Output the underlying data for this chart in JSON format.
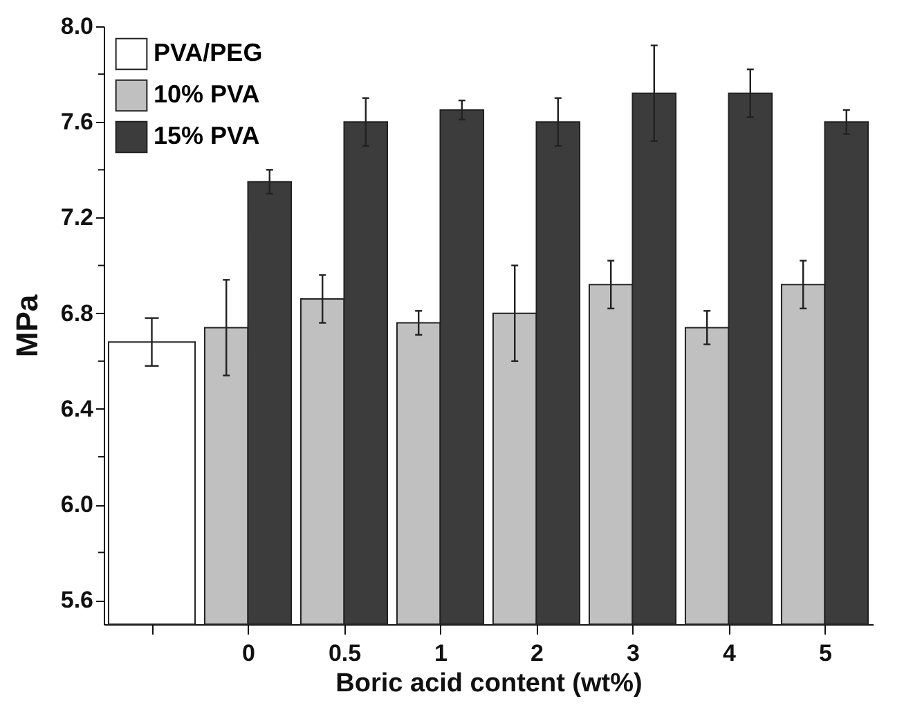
{
  "chart_data": {
    "type": "bar",
    "xlabel": "Boric acid content (wt%)",
    "ylabel": "MPa",
    "categories": [
      null,
      "0",
      "0.5",
      "1",
      "2",
      "3",
      "4",
      "5"
    ],
    "series": [
      {
        "name": "PVA/PEG",
        "color": "#ffffff",
        "values": [
          6.68,
          null,
          null,
          null,
          null,
          null,
          null,
          null
        ],
        "errors": [
          0.1,
          null,
          null,
          null,
          null,
          null,
          null,
          null
        ]
      },
      {
        "name": "10% PVA",
        "color": "#c0c0c0",
        "values": [
          null,
          6.74,
          6.86,
          6.76,
          6.8,
          6.92,
          6.74,
          6.92
        ],
        "errors": [
          null,
          0.2,
          0.1,
          0.05,
          0.2,
          0.1,
          0.07,
          0.1
        ]
      },
      {
        "name": "15% PVA",
        "color": "#3c3c3c",
        "values": [
          null,
          7.35,
          7.6,
          7.65,
          7.6,
          7.72,
          7.72,
          7.6
        ],
        "errors": [
          null,
          0.05,
          0.1,
          0.04,
          0.1,
          0.2,
          0.1,
          0.05
        ]
      }
    ],
    "ylim": [
      5.5,
      8.0
    ],
    "yticks": [
      5.6,
      {
        "value": 5.8,
        "label": null
      },
      {
        "value": 6.0,
        "label": "6.0"
      },
      {
        "value": 6.2,
        "label": null
      },
      6.4,
      {
        "value": 6.6,
        "label": null
      },
      6.8,
      {
        "value": 7.0,
        "label": null
      },
      7.2,
      {
        "value": 7.4,
        "label": null
      },
      7.6,
      {
        "value": 7.8,
        "label": null
      },
      {
        "value": 8.0,
        "label": "8.0"
      }
    ],
    "grid": false,
    "legend": "top left"
  }
}
